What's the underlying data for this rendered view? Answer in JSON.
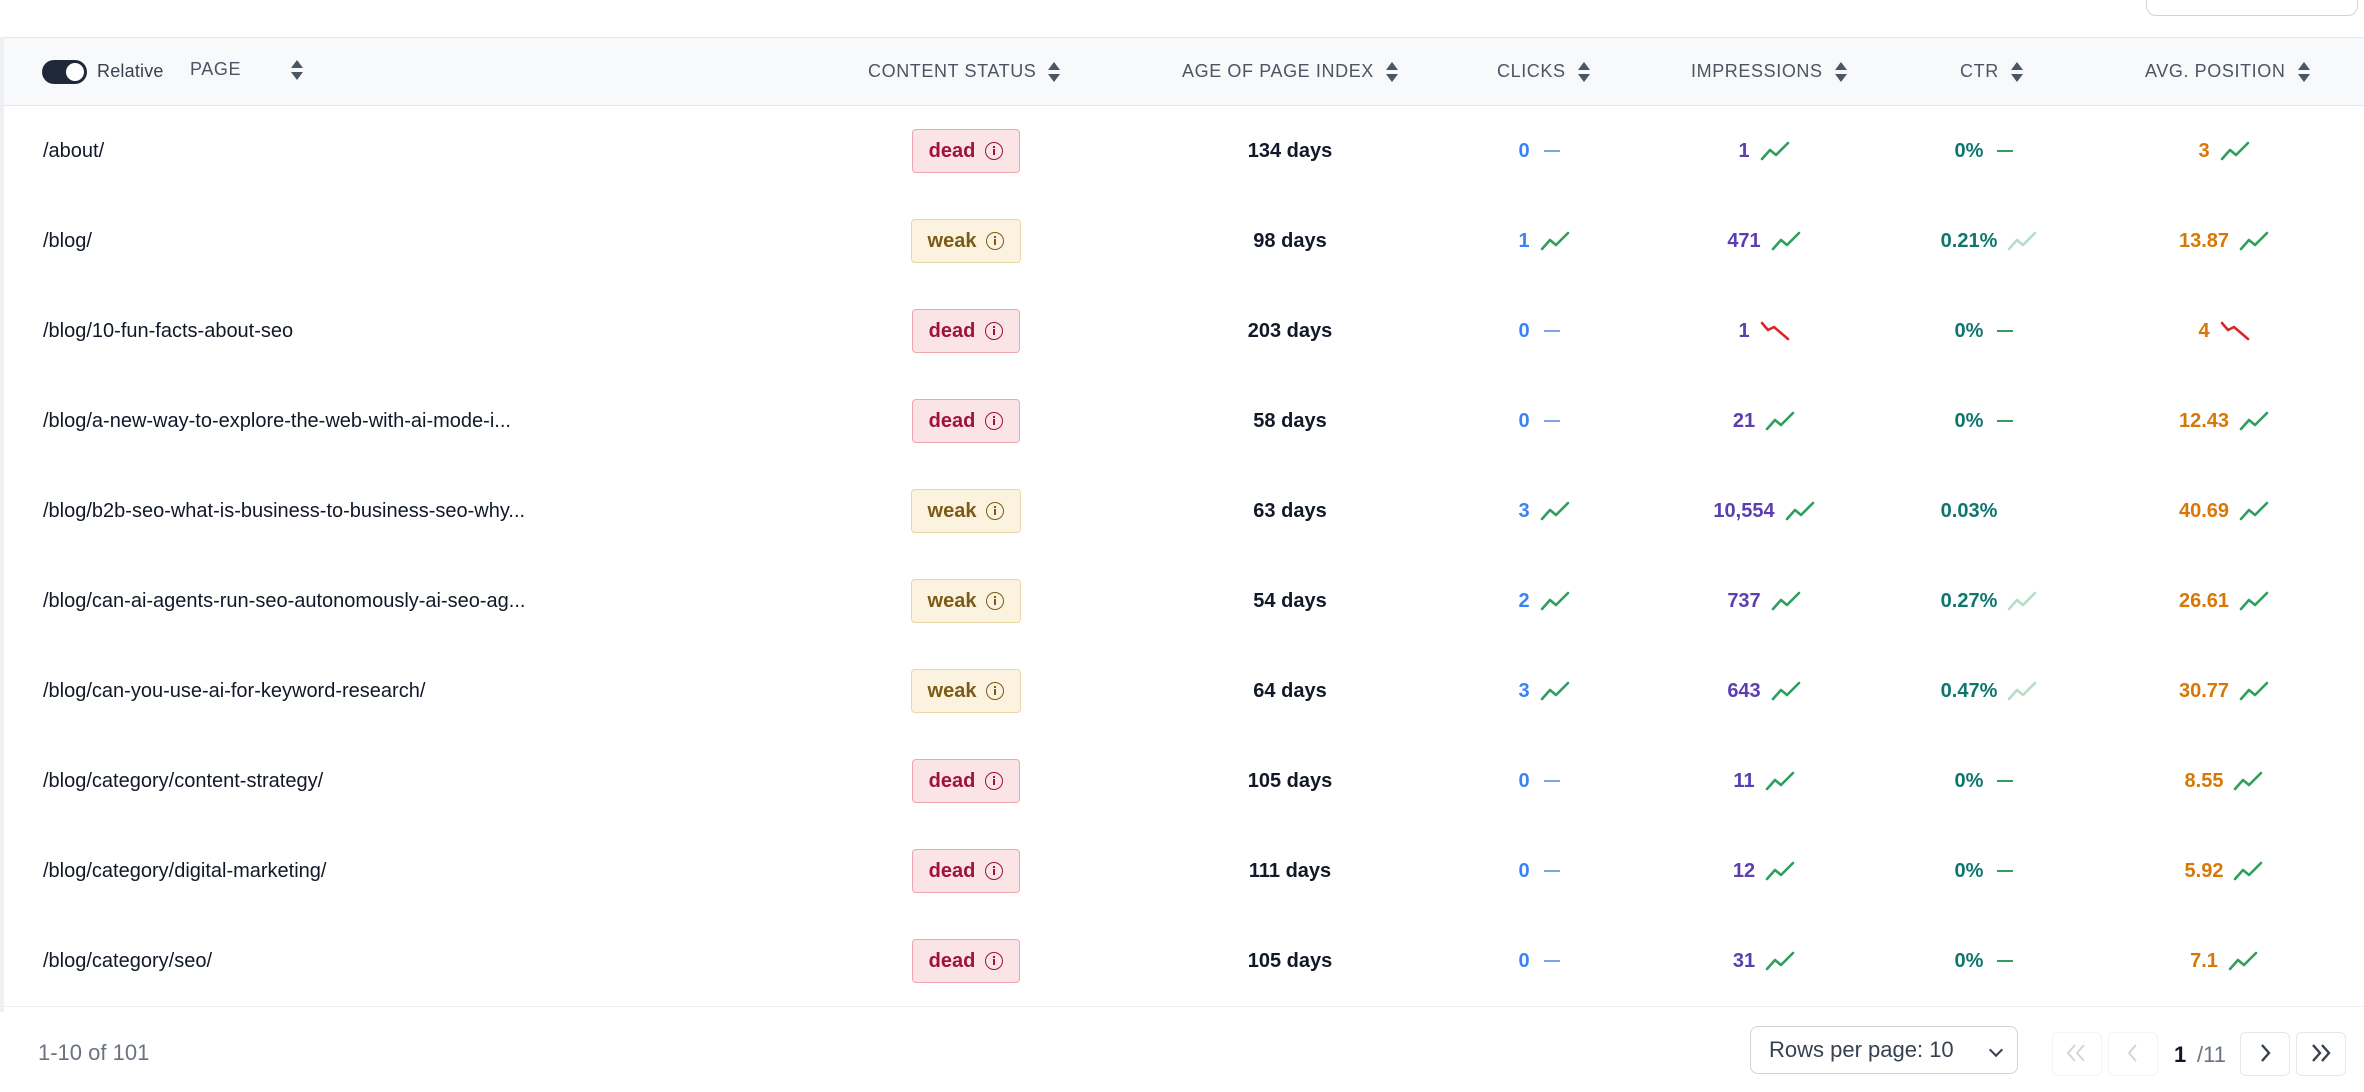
{
  "toolbar": {
    "relative_label": "Relative"
  },
  "columns": {
    "page": "PAGE",
    "content_status": "CONTENT STATUS",
    "age": "AGE OF PAGE INDEX",
    "clicks": "CLICKS",
    "impressions": "IMPRESSIONS",
    "ctr": "CTR",
    "avg_position": "AVG. POSITION"
  },
  "rows": [
    {
      "page": "/about/",
      "status": "dead",
      "age": "134 days",
      "clicks": "0",
      "clicks_trend": "flat",
      "impressions": "1",
      "impressions_trend": "up",
      "ctr": "0%",
      "ctr_trend": "flat",
      "position": "3",
      "position_trend": "up"
    },
    {
      "page": "/blog/",
      "status": "weak",
      "age": "98 days",
      "clicks": "1",
      "clicks_trend": "up",
      "impressions": "471",
      "impressions_trend": "up",
      "ctr": "0.21%",
      "ctr_trend": "up-light",
      "position": "13.87",
      "position_trend": "up"
    },
    {
      "page": "/blog/10-fun-facts-about-seo",
      "status": "dead",
      "age": "203 days",
      "clicks": "0",
      "clicks_trend": "flat",
      "impressions": "1",
      "impressions_trend": "down",
      "ctr": "0%",
      "ctr_trend": "flat",
      "position": "4",
      "position_trend": "down"
    },
    {
      "page": "/blog/a-new-way-to-explore-the-web-with-ai-mode-i...",
      "status": "dead",
      "age": "58 days",
      "clicks": "0",
      "clicks_trend": "flat",
      "impressions": "21",
      "impressions_trend": "up",
      "ctr": "0%",
      "ctr_trend": "flat",
      "position": "12.43",
      "position_trend": "up"
    },
    {
      "page": "/blog/b2b-seo-what-is-business-to-business-seo-why...",
      "status": "weak",
      "age": "63 days",
      "clicks": "3",
      "clicks_trend": "up",
      "impressions": "10,554",
      "impressions_trend": "up",
      "ctr": "0.03%",
      "ctr_trend": "none",
      "position": "40.69",
      "position_trend": "up"
    },
    {
      "page": "/blog/can-ai-agents-run-seo-autonomously-ai-seo-ag...",
      "status": "weak",
      "age": "54 days",
      "clicks": "2",
      "clicks_trend": "up",
      "impressions": "737",
      "impressions_trend": "up",
      "ctr": "0.27%",
      "ctr_trend": "up-light",
      "position": "26.61",
      "position_trend": "up"
    },
    {
      "page": "/blog/can-you-use-ai-for-keyword-research/",
      "status": "weak",
      "age": "64 days",
      "clicks": "3",
      "clicks_trend": "up",
      "impressions": "643",
      "impressions_trend": "up",
      "ctr": "0.47%",
      "ctr_trend": "up-light",
      "position": "30.77",
      "position_trend": "up"
    },
    {
      "page": "/blog/category/content-strategy/",
      "status": "dead",
      "age": "105 days",
      "clicks": "0",
      "clicks_trend": "flat",
      "impressions": "11",
      "impressions_trend": "up",
      "ctr": "0%",
      "ctr_trend": "flat",
      "position": "8.55",
      "position_trend": "up"
    },
    {
      "page": "/blog/category/digital-marketing/",
      "status": "dead",
      "age": "111 days",
      "clicks": "0",
      "clicks_trend": "flat",
      "impressions": "12",
      "impressions_trend": "up",
      "ctr": "0%",
      "ctr_trend": "flat",
      "position": "5.92",
      "position_trend": "up"
    },
    {
      "page": "/blog/category/seo/",
      "status": "dead",
      "age": "105 days",
      "clicks": "0",
      "clicks_trend": "flat",
      "impressions": "31",
      "impressions_trend": "up",
      "ctr": "0%",
      "ctr_trend": "flat",
      "position": "7.1",
      "position_trend": "up"
    }
  ],
  "footer": {
    "range_text": "1-10 of 101",
    "rows_per_page_label": "Rows per page: 10",
    "current_page": "1",
    "total_pages": "/11"
  },
  "colors": {
    "dead_bg": "#fbe4e6",
    "weak_bg": "#fbf3e0",
    "clicks": "#3b82f6",
    "impressions": "#5b3fb0",
    "ctr": "#0f766e",
    "position": "#d97706",
    "trend_up": "#2f9e5f",
    "trend_down": "#dc2626"
  },
  "icons": [
    "info-icon",
    "trend-up-icon",
    "trend-down-icon",
    "sort-icon",
    "chevron-down-icon",
    "first-page-icon",
    "prev-page-icon",
    "next-page-icon",
    "last-page-icon"
  ]
}
